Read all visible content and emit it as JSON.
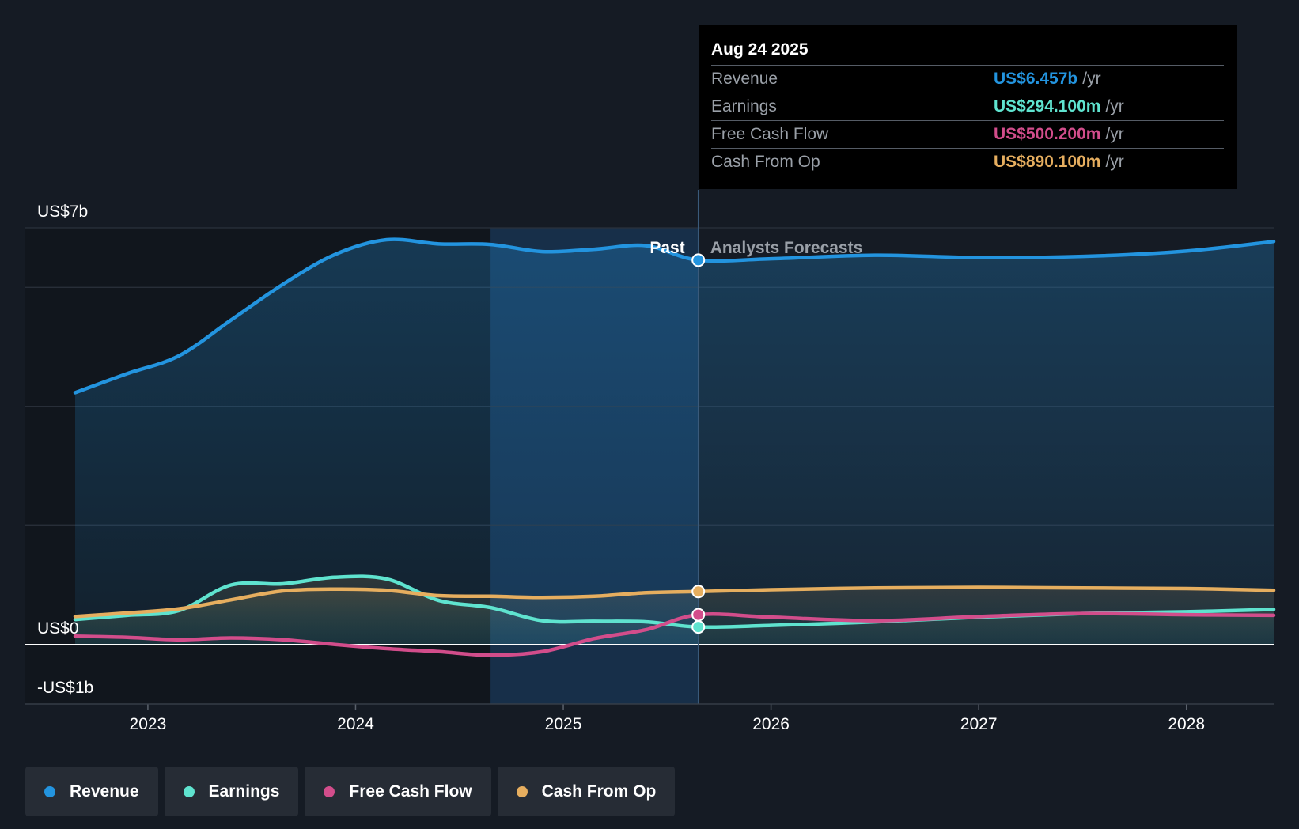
{
  "colors": {
    "revenue": "#2394df",
    "earnings": "#5fe3cf",
    "fcf": "#d24d8b",
    "cfo": "#e6ae5f"
  },
  "labels": {
    "past": "Past",
    "forecast": "Analysts Forecasts"
  },
  "tooltip": {
    "date": "Aug 24 2025",
    "rows": [
      {
        "label": "Revenue",
        "value": "US$6.457b",
        "unit": "/yr"
      },
      {
        "label": "Earnings",
        "value": "US$294.100m",
        "unit": "/yr"
      },
      {
        "label": "Free Cash Flow",
        "value": "US$500.200m",
        "unit": "/yr"
      },
      {
        "label": "Cash From Op",
        "value": "US$890.100m",
        "unit": "/yr"
      }
    ]
  },
  "legend": [
    {
      "label": "Revenue"
    },
    {
      "label": "Earnings"
    },
    {
      "label": "Free Cash Flow"
    },
    {
      "label": "Cash From Op"
    }
  ],
  "chart_data": {
    "type": "line",
    "title": "",
    "xlabel": "",
    "ylabel": "",
    "ylim": [
      -1,
      7
    ],
    "y_tick_labels": [
      {
        "value": 7,
        "label": "US$7b"
      },
      {
        "value": 0,
        "label": "US$0"
      },
      {
        "value": -1,
        "label": "-US$1b"
      }
    ],
    "x_ticks": [
      {
        "value": 2023,
        "label": "2023"
      },
      {
        "value": 2024,
        "label": "2024"
      },
      {
        "value": 2025,
        "label": "2025"
      },
      {
        "value": 2026,
        "label": "2026"
      },
      {
        "value": 2027,
        "label": "2027"
      },
      {
        "value": 2028,
        "label": "2028"
      }
    ],
    "xlim": [
      2022.41,
      2028.42
    ],
    "past_region_start": 2024.65,
    "present": 2025.65,
    "series": [
      {
        "name": "Revenue",
        "key": "revenue",
        "points": [
          [
            2022.65,
            4.23
          ],
          [
            2022.9,
            4.55
          ],
          [
            2023.15,
            4.85
          ],
          [
            2023.4,
            5.45
          ],
          [
            2023.65,
            6.05
          ],
          [
            2023.9,
            6.55
          ],
          [
            2024.15,
            6.8
          ],
          [
            2024.4,
            6.73
          ],
          [
            2024.65,
            6.72
          ],
          [
            2024.9,
            6.6
          ],
          [
            2025.15,
            6.64
          ],
          [
            2025.4,
            6.7
          ],
          [
            2025.65,
            6.457
          ],
          [
            2026.0,
            6.48
          ],
          [
            2026.5,
            6.54
          ],
          [
            2027.0,
            6.5
          ],
          [
            2027.5,
            6.52
          ],
          [
            2028.0,
            6.61
          ],
          [
            2028.42,
            6.77
          ]
        ]
      },
      {
        "name": "Earnings",
        "key": "earnings",
        "points": [
          [
            2022.65,
            0.42
          ],
          [
            2022.9,
            0.49
          ],
          [
            2023.15,
            0.57
          ],
          [
            2023.4,
            1.0
          ],
          [
            2023.65,
            1.02
          ],
          [
            2023.9,
            1.13
          ],
          [
            2024.15,
            1.1
          ],
          [
            2024.4,
            0.74
          ],
          [
            2024.65,
            0.62
          ],
          [
            2024.9,
            0.4
          ],
          [
            2025.15,
            0.39
          ],
          [
            2025.4,
            0.38
          ],
          [
            2025.65,
            0.294
          ],
          [
            2026.0,
            0.32
          ],
          [
            2026.5,
            0.38
          ],
          [
            2027.0,
            0.46
          ],
          [
            2027.5,
            0.52
          ],
          [
            2028.0,
            0.55
          ],
          [
            2028.42,
            0.59
          ]
        ]
      },
      {
        "name": "Free Cash Flow",
        "key": "fcf",
        "points": [
          [
            2022.65,
            0.14
          ],
          [
            2022.9,
            0.12
          ],
          [
            2023.15,
            0.08
          ],
          [
            2023.4,
            0.11
          ],
          [
            2023.65,
            0.08
          ],
          [
            2023.9,
            0.0
          ],
          [
            2024.15,
            -0.07
          ],
          [
            2024.4,
            -0.12
          ],
          [
            2024.65,
            -0.18
          ],
          [
            2024.9,
            -0.12
          ],
          [
            2025.15,
            0.1
          ],
          [
            2025.4,
            0.25
          ],
          [
            2025.65,
            0.5002
          ],
          [
            2026.0,
            0.46
          ],
          [
            2026.5,
            0.4
          ],
          [
            2027.0,
            0.47
          ],
          [
            2027.5,
            0.52
          ],
          [
            2028.0,
            0.5
          ],
          [
            2028.42,
            0.49
          ]
        ]
      },
      {
        "name": "Cash From Op",
        "key": "cfo",
        "points": [
          [
            2022.65,
            0.47
          ],
          [
            2022.9,
            0.53
          ],
          [
            2023.15,
            0.6
          ],
          [
            2023.4,
            0.75
          ],
          [
            2023.65,
            0.9
          ],
          [
            2023.9,
            0.93
          ],
          [
            2024.15,
            0.91
          ],
          [
            2024.4,
            0.82
          ],
          [
            2024.65,
            0.81
          ],
          [
            2024.9,
            0.79
          ],
          [
            2025.15,
            0.81
          ],
          [
            2025.4,
            0.87
          ],
          [
            2025.65,
            0.8901
          ],
          [
            2026.0,
            0.92
          ],
          [
            2026.5,
            0.95
          ],
          [
            2027.0,
            0.96
          ],
          [
            2027.5,
            0.95
          ],
          [
            2028.0,
            0.94
          ],
          [
            2028.42,
            0.91
          ]
        ]
      }
    ]
  }
}
